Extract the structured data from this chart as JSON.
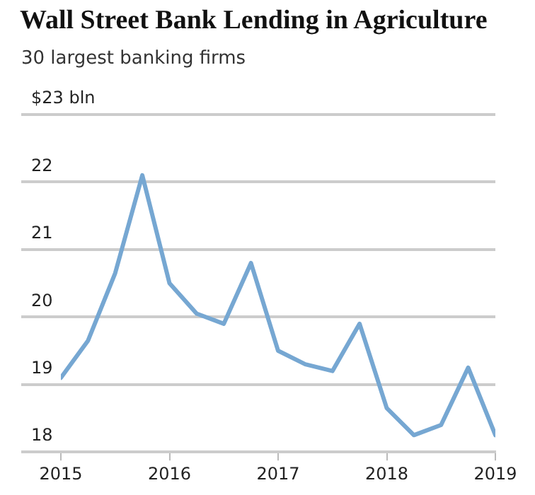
{
  "chart_data": {
    "type": "line",
    "title": "Wall Street Bank Lending in Agriculture",
    "subtitle": "30 largest banking firms",
    "x": [
      2015,
      2015.25,
      2015.5,
      2015.75,
      2016,
      2016.25,
      2016.5,
      2016.75,
      2017,
      2017.25,
      2017.5,
      2017.75,
      2018,
      2018.25,
      2018.5,
      2018.75,
      2019
    ],
    "series": [
      {
        "color": "#76a7d2",
        "values": [
          19.1,
          19.65,
          20.65,
          22.1,
          20.5,
          20.05,
          19.9,
          20.8,
          19.5,
          19.3,
          19.2,
          19.9,
          18.65,
          18.25,
          18.4,
          19.25,
          18.25
        ]
      }
    ],
    "xlim": [
      2015,
      2019
    ],
    "xticks": [
      2015,
      2016,
      2017,
      2018,
      2019
    ],
    "ylim": [
      18,
      23
    ],
    "yticks": [
      18,
      19,
      20,
      21,
      22,
      {
        "value": 23,
        "label": "$23 bln"
      }
    ],
    "grid": "y",
    "legend": false,
    "marker": "none",
    "line_style": "solid"
  }
}
